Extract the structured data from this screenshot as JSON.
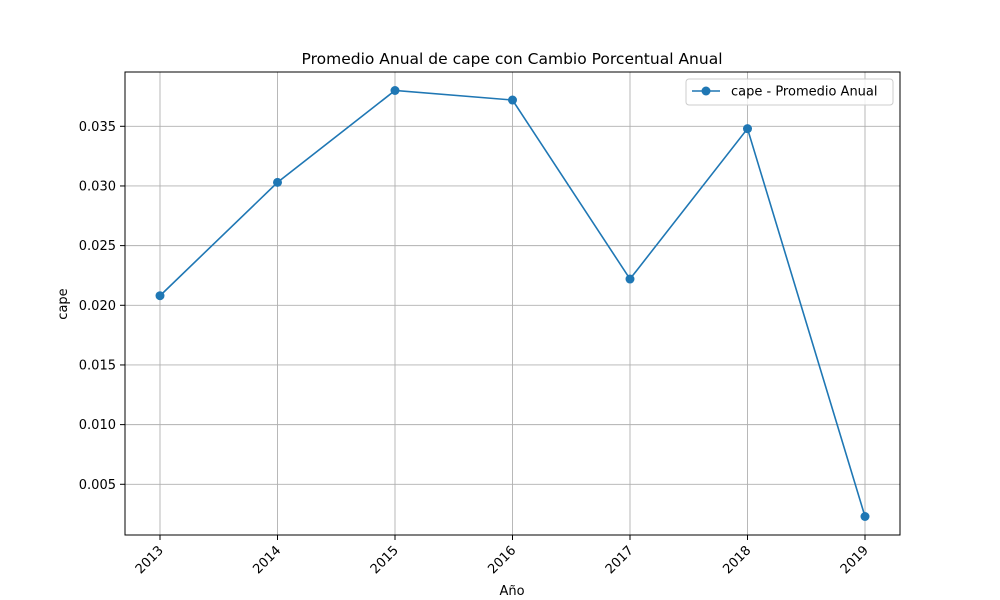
{
  "chart_data": {
    "type": "line",
    "title": "Promedio Anual de cape con Cambio Porcentual Anual",
    "xlabel": "Año",
    "ylabel": "cape",
    "x": [
      "2013",
      "2014",
      "2015",
      "2016",
      "2017",
      "2018",
      "2019"
    ],
    "series": [
      {
        "name": "cape - Promedio Anual",
        "values": [
          0.0208,
          0.0303,
          0.038,
          0.0372,
          0.0222,
          0.0348,
          0.0023
        ],
        "color": "#1f77b4",
        "marker": "circle"
      }
    ],
    "yticks": [
      "0.005",
      "0.010",
      "0.015",
      "0.020",
      "0.025",
      "0.030",
      "0.035"
    ],
    "ylim": [
      0.00075,
      0.03955
    ],
    "grid": true,
    "legend_position": "top-right",
    "xtick_rotation": 45
  }
}
